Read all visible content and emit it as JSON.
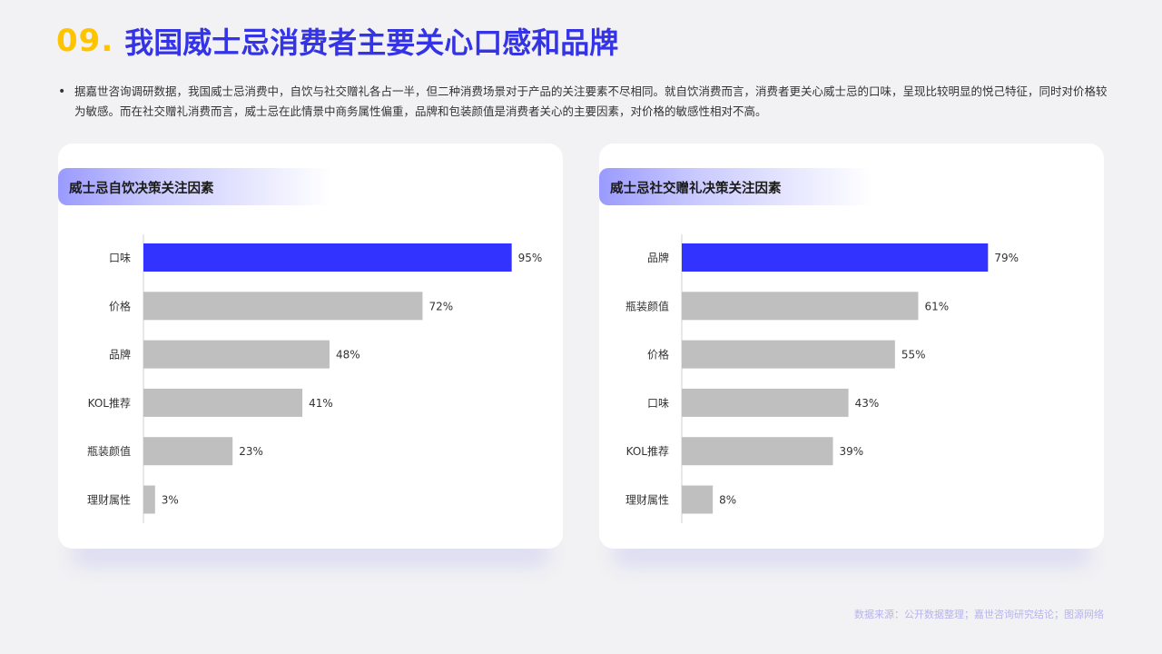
{
  "page": {
    "number": "09.",
    "title": "我国威士忌消费者主要关心口感和品牌",
    "intro": "据嘉世咨询调研数据，我国威士忌消费中，自饮与社交赠礼各占一半，但二种消费场景对于产品的关注要素不尽相同。就自饮消费而言，消费者更关心威士忌的口味，呈现比较明显的悦己特征，同时对价格较为敏感。而在社交赠礼消费而言，威士忌在此情景中商务属性偏重，品牌和包装颜值是消费者关心的主要因素，对价格的敏感性相对不高。",
    "bullet": "•",
    "source": "数据来源：公开数据整理；嘉世咨询研究结论；图源网络"
  },
  "colors": {
    "highlight": "#3333ff",
    "bar": "#bfbfbf",
    "title_num": "#ffc400",
    "title_text": "#3434e6"
  },
  "chart_data": [
    {
      "type": "bar",
      "orientation": "horizontal",
      "title": "威士忌自饮决策关注因素",
      "categories": [
        "口味",
        "价格",
        "品牌",
        "KOL推荐",
        "瓶装颜值",
        "理财属性"
      ],
      "values": [
        95,
        72,
        48,
        41,
        23,
        3
      ],
      "labels": [
        "95%",
        "72%",
        "48%",
        "41%",
        "23%",
        "3%"
      ],
      "unit": "%",
      "highlight_index": 0,
      "xlim": [
        0,
        100
      ]
    },
    {
      "type": "bar",
      "orientation": "horizontal",
      "title": "威士忌社交赠礼决策关注因素",
      "categories": [
        "品牌",
        "瓶装颜值",
        "价格",
        "口味",
        "KOL推荐",
        "理财属性"
      ],
      "values": [
        79,
        61,
        55,
        43,
        39,
        8
      ],
      "labels": [
        "79%",
        "61%",
        "55%",
        "43%",
        "39%",
        "8%"
      ],
      "unit": "%",
      "highlight_index": 0,
      "xlim": [
        0,
        100
      ]
    }
  ]
}
